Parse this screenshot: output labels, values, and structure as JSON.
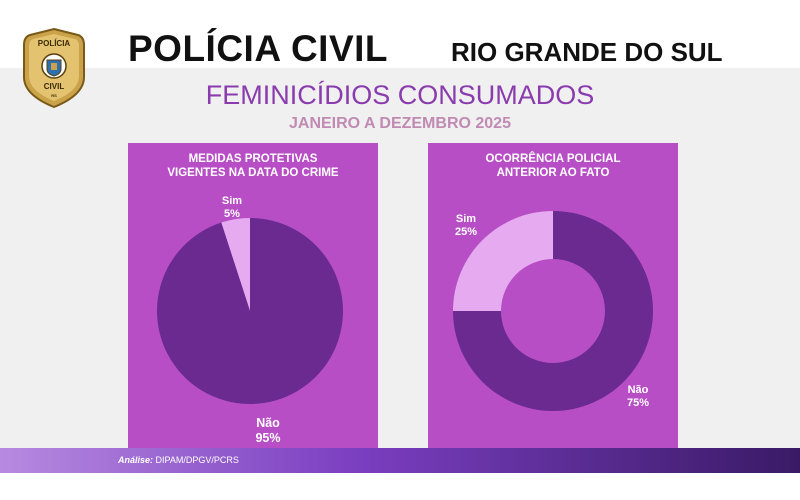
{
  "header": {
    "title": "POLÍCIA CIVIL",
    "state": "RIO GRANDE DO SUL",
    "badge": {
      "top_text": "POLÍCIA",
      "bottom_text": "CIVIL",
      "state_abbr": "RS"
    }
  },
  "subtitle": "FEMINICÍDIOS CONSUMADOS",
  "period": "JANEIRO A DEZEMBRO 2025",
  "colors": {
    "panel": "#b84ec6",
    "dark_slice": "#6a2a8f",
    "light_slice": "#e6aaf0",
    "subtitle": "#8a3cae",
    "period": "#c08ab3"
  },
  "chart_data": [
    {
      "type": "pie",
      "title": "MEDIDAS PROTETIVAS\nVIGENTES NA DATA DO CRIME",
      "categories": [
        "Sim",
        "Não"
      ],
      "values": [
        5,
        95
      ],
      "labels": [
        "5%",
        "95%"
      ]
    },
    {
      "type": "pie",
      "variant": "donut",
      "title": "OCORRÊNCIA POLICIAL\nANTERIOR AO FATO",
      "categories": [
        "Sim",
        "Não"
      ],
      "values": [
        25,
        75
      ],
      "labels": [
        "25%",
        "75%"
      ]
    }
  ],
  "footer": {
    "label": "Análise:",
    "source": "DIPAM/DPGV/PCRS"
  }
}
